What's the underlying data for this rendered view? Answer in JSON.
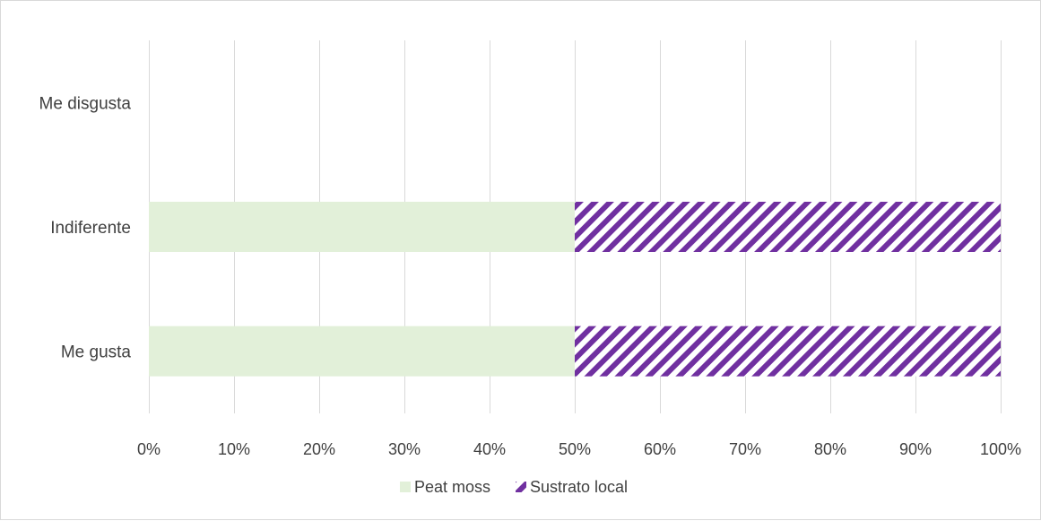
{
  "chart_data": {
    "type": "bar",
    "orientation": "horizontal",
    "stacked": "percent",
    "categories": [
      "Me disgusta",
      "Indiferente",
      "Me gusta"
    ],
    "series": [
      {
        "name": "Peat moss",
        "values": [
          0,
          50,
          50
        ],
        "color": "#e2f0d9",
        "pattern": "solid"
      },
      {
        "name": "Sustrato local",
        "values": [
          0,
          50,
          50
        ],
        "color": "#7030a0",
        "pattern": "diagonal-stripes"
      }
    ],
    "xlim": [
      0,
      100
    ],
    "x_ticks": [
      "0%",
      "10%",
      "20%",
      "30%",
      "40%",
      "50%",
      "60%",
      "70%",
      "80%",
      "90%",
      "100%"
    ],
    "grid": true,
    "legend_position": "bottom",
    "title": "",
    "xlabel": "",
    "ylabel": ""
  }
}
